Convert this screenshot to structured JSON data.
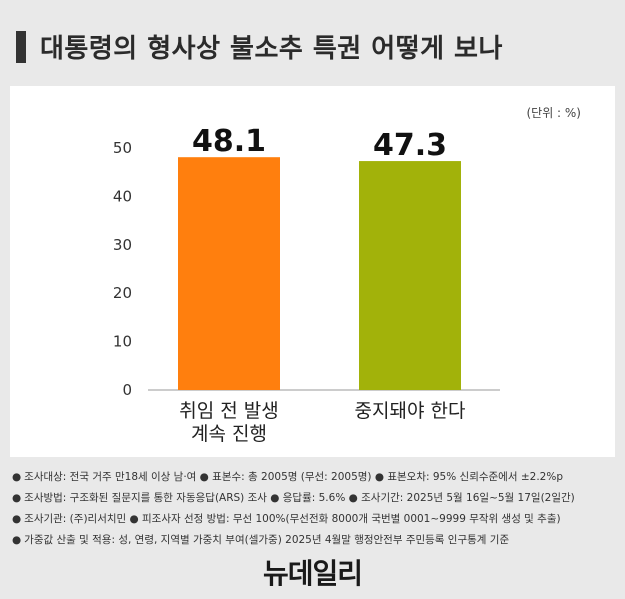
{
  "title": "대통령의 형사상 불소추 특권 어떻게 보나",
  "unit_label": "(단위 : %)",
  "chart_data": {
    "type": "bar",
    "categories": [
      "취임 전 발생\n계속 진행",
      "중지돼야 한다"
    ],
    "values": [
      48.1,
      47.3
    ],
    "value_labels": [
      "48.1",
      "47.3"
    ],
    "colors": [
      "#ff7f0e",
      "#a2b20a"
    ],
    "ylim": [
      0,
      50
    ],
    "yticks": [
      0,
      10,
      20,
      30,
      40,
      50
    ],
    "grid": false,
    "xlabel": "",
    "ylabel": ""
  },
  "notes": [
    "조사대상: 전국 거주 만18세 이상 남·여 ● 표본수: 총 2005명 (무선: 2005명) ● 표본오차: 95% 신뢰수준에서 ±2.2%p",
    "조사방법: 구조화된 질문지를 통한 자동응답(ARS) 조사 ● 응답률: 5.6% ● 조사기간: 2025년 5월 16일~5월 17일(2일간)",
    "조사기관: (주)리서치민 ● 피조사자 선정 방법: 무선 100%(무선전화 8000개 국번별 0001~9999 무작위 생성 및 추출)",
    "가중값 산출 및 적용: 성, 연령, 지역별 가중치 부여(셀가중) 2025년 4월말 행정안전부 주민등록 인구통계 기준"
  ],
  "brand": "뉴데일리"
}
